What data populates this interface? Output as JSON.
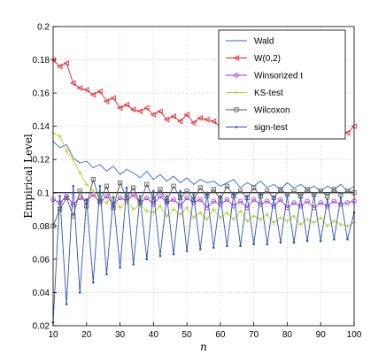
{
  "chart_data": {
    "type": "line",
    "xlabel": "n",
    "ylabel": "Empirical Level",
    "xlim": [
      10,
      100
    ],
    "ylim": [
      0.02,
      0.2
    ],
    "xticks": [
      10,
      20,
      30,
      40,
      50,
      60,
      70,
      80,
      90,
      100
    ],
    "yticks": [
      0.02,
      0.04,
      0.06,
      0.08,
      0.1,
      0.12,
      0.14,
      0.16,
      0.18,
      0.2
    ],
    "ytick_labels": [
      "0.02",
      "0.04",
      "0.06",
      "0.08",
      "0.1",
      "0.12",
      "0.14",
      "0.16",
      "0.18",
      "0.2"
    ],
    "grid": true,
    "grid_style": "dotted",
    "legend_position": "top-right",
    "reference_line": {
      "y": 0.1,
      "color": "#000000"
    },
    "series": [
      {
        "name": "Wald",
        "color": "#3366cc",
        "marker": "none",
        "x": [
          10,
          12,
          14,
          16,
          18,
          20,
          22,
          24,
          26,
          28,
          30,
          32,
          34,
          36,
          38,
          40,
          42,
          44,
          46,
          48,
          50,
          52,
          54,
          56,
          58,
          60,
          62,
          64,
          66,
          68,
          70,
          72,
          74,
          76,
          78,
          80,
          82,
          84,
          86,
          88,
          90,
          92,
          94,
          96,
          98,
          100
        ],
        "values": [
          0.131,
          0.127,
          0.129,
          0.121,
          0.118,
          0.119,
          0.115,
          0.117,
          0.113,
          0.116,
          0.111,
          0.114,
          0.112,
          0.109,
          0.113,
          0.108,
          0.111,
          0.107,
          0.11,
          0.106,
          0.109,
          0.105,
          0.108,
          0.106,
          0.107,
          0.104,
          0.106,
          0.108,
          0.103,
          0.106,
          0.104,
          0.107,
          0.103,
          0.105,
          0.102,
          0.106,
          0.103,
          0.105,
          0.102,
          0.104,
          0.101,
          0.104,
          0.102,
          0.105,
          0.101,
          0.104
        ]
      },
      {
        "name": "W(0,2)",
        "color": "#e8202a",
        "marker": "triangle-left",
        "x": [
          10,
          12,
          14,
          16,
          18,
          20,
          22,
          24,
          26,
          28,
          30,
          32,
          34,
          36,
          38,
          40,
          42,
          44,
          46,
          48,
          50,
          52,
          54,
          56,
          58,
          60,
          62,
          64,
          66,
          68,
          70,
          72,
          74,
          76,
          78,
          80,
          82,
          84,
          86,
          88,
          90,
          92,
          94,
          96,
          98,
          100
        ],
        "values": [
          0.18,
          0.176,
          0.178,
          0.166,
          0.163,
          0.162,
          0.159,
          0.161,
          0.155,
          0.157,
          0.151,
          0.153,
          0.15,
          0.149,
          0.151,
          0.147,
          0.149,
          0.144,
          0.146,
          0.143,
          0.147,
          0.142,
          0.145,
          0.144,
          0.143,
          0.14,
          0.142,
          0.145,
          0.139,
          0.141,
          0.138,
          0.141,
          0.137,
          0.14,
          0.138,
          0.143,
          0.137,
          0.14,
          0.136,
          0.139,
          0.137,
          0.14,
          0.135,
          0.138,
          0.136,
          0.14
        ]
      },
      {
        "name": "Winsorized t",
        "color": "#9b30d9",
        "marker": "circle",
        "x": [
          10,
          12,
          14,
          16,
          18,
          20,
          22,
          24,
          26,
          28,
          30,
          32,
          34,
          36,
          38,
          40,
          42,
          44,
          46,
          48,
          50,
          52,
          54,
          56,
          58,
          60,
          62,
          64,
          66,
          68,
          70,
          72,
          74,
          76,
          78,
          80,
          82,
          84,
          86,
          88,
          90,
          92,
          94,
          96,
          98,
          100
        ],
        "values": [
          0.096,
          0.094,
          0.098,
          0.093,
          0.097,
          0.095,
          0.099,
          0.094,
          0.098,
          0.093,
          0.097,
          0.095,
          0.099,
          0.094,
          0.097,
          0.093,
          0.098,
          0.094,
          0.096,
          0.092,
          0.097,
          0.094,
          0.096,
          0.091,
          0.095,
          0.093,
          0.096,
          0.092,
          0.095,
          0.091,
          0.096,
          0.093,
          0.095,
          0.092,
          0.096,
          0.091,
          0.094,
          0.092,
          0.095,
          0.091,
          0.094,
          0.092,
          0.095,
          0.093,
          0.094,
          0.095
        ]
      },
      {
        "name": "KS-test",
        "color": "#b8d430",
        "marker": "plus",
        "x": [
          10,
          12,
          14,
          16,
          18,
          20,
          22,
          24,
          26,
          28,
          30,
          32,
          34,
          36,
          38,
          40,
          42,
          44,
          46,
          48,
          50,
          52,
          54,
          56,
          58,
          60,
          62,
          64,
          66,
          68,
          70,
          72,
          74,
          76,
          78,
          80,
          82,
          84,
          86,
          88,
          90,
          92,
          94,
          96,
          98,
          100
        ],
        "values": [
          0.136,
          0.134,
          0.125,
          0.12,
          0.112,
          0.105,
          0.101,
          0.096,
          0.094,
          0.098,
          0.091,
          0.095,
          0.09,
          0.093,
          0.089,
          0.088,
          0.092,
          0.086,
          0.09,
          0.087,
          0.091,
          0.085,
          0.088,
          0.084,
          0.09,
          0.085,
          0.088,
          0.084,
          0.089,
          0.083,
          0.086,
          0.084,
          0.087,
          0.082,
          0.085,
          0.083,
          0.086,
          0.081,
          0.084,
          0.082,
          0.085,
          0.08,
          0.083,
          0.081,
          0.08,
          0.082
        ]
      },
      {
        "name": "Wilcoxon",
        "color": "#555555",
        "marker": "square",
        "x": [
          10,
          12,
          14,
          16,
          18,
          20,
          22,
          24,
          26,
          28,
          30,
          32,
          34,
          36,
          38,
          40,
          42,
          44,
          46,
          48,
          50,
          52,
          54,
          56,
          58,
          60,
          62,
          64,
          66,
          68,
          70,
          72,
          74,
          76,
          78,
          80,
          82,
          84,
          86,
          88,
          90,
          92,
          94,
          96,
          98,
          100
        ],
        "values": [
          0.08,
          0.09,
          0.097,
          0.086,
          0.101,
          0.092,
          0.108,
          0.095,
          0.104,
          0.091,
          0.106,
          0.097,
          0.103,
          0.094,
          0.105,
          0.096,
          0.102,
          0.095,
          0.104,
          0.097,
          0.101,
          0.096,
          0.103,
          0.098,
          0.102,
          0.096,
          0.104,
          0.098,
          0.101,
          0.097,
          0.103,
          0.098,
          0.101,
          0.097,
          0.102,
          0.099,
          0.101,
          0.098,
          0.102,
          0.099,
          0.101,
          0.098,
          0.102,
          0.099,
          0.101,
          0.1
        ]
      },
      {
        "name": "sign-test",
        "color": "#2d55b8",
        "marker": "dot",
        "x": [
          10,
          12,
          14,
          16,
          18,
          20,
          22,
          24,
          26,
          28,
          30,
          32,
          34,
          36,
          38,
          40,
          42,
          44,
          46,
          48,
          50,
          52,
          54,
          56,
          58,
          60,
          62,
          64,
          66,
          68,
          70,
          72,
          74,
          76,
          78,
          80,
          82,
          84,
          86,
          88,
          90,
          92,
          94,
          96,
          98,
          100
        ],
        "values": [
          0.022,
          0.098,
          0.033,
          0.104,
          0.04,
          0.096,
          0.046,
          0.104,
          0.051,
          0.097,
          0.055,
          0.103,
          0.057,
          0.098,
          0.06,
          0.101,
          0.062,
          0.098,
          0.063,
          0.101,
          0.065,
          0.099,
          0.066,
          0.1,
          0.067,
          0.098,
          0.068,
          0.1,
          0.068,
          0.098,
          0.069,
          0.099,
          0.069,
          0.097,
          0.07,
          0.098,
          0.07,
          0.097,
          0.071,
          0.098,
          0.071,
          0.096,
          0.072,
          0.097,
          0.072,
          0.088
        ]
      }
    ]
  }
}
